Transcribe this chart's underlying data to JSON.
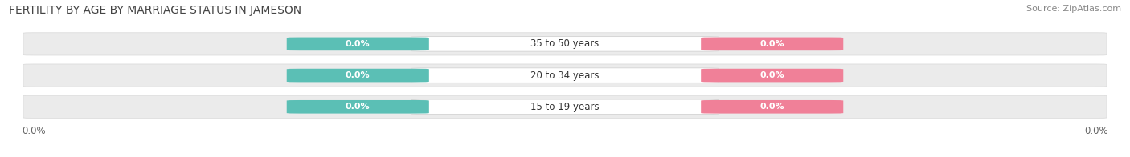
{
  "title": "FERTILITY BY AGE BY MARRIAGE STATUS IN JAMESON",
  "source": "Source: ZipAtlas.com",
  "categories": [
    "15 to 19 years",
    "20 to 34 years",
    "35 to 50 years"
  ],
  "married_values": [
    0.0,
    0.0,
    0.0
  ],
  "unmarried_values": [
    0.0,
    0.0,
    0.0
  ],
  "married_color": "#5BBFB5",
  "unmarried_color": "#F08098",
  "bar_bg_color": "#EBEBEB",
  "bar_bg_edge_color": "#D8D8D8",
  "label_bg_color": "#FFFFFF",
  "title_fontsize": 10,
  "source_fontsize": 8,
  "label_fontsize": 8.5,
  "value_fontsize": 8,
  "tick_fontsize": 8.5,
  "background_color": "#FFFFFF",
  "axis_label_color": "#666666",
  "category_text_color": "#333333",
  "value_text_color": "#FFFFFF"
}
